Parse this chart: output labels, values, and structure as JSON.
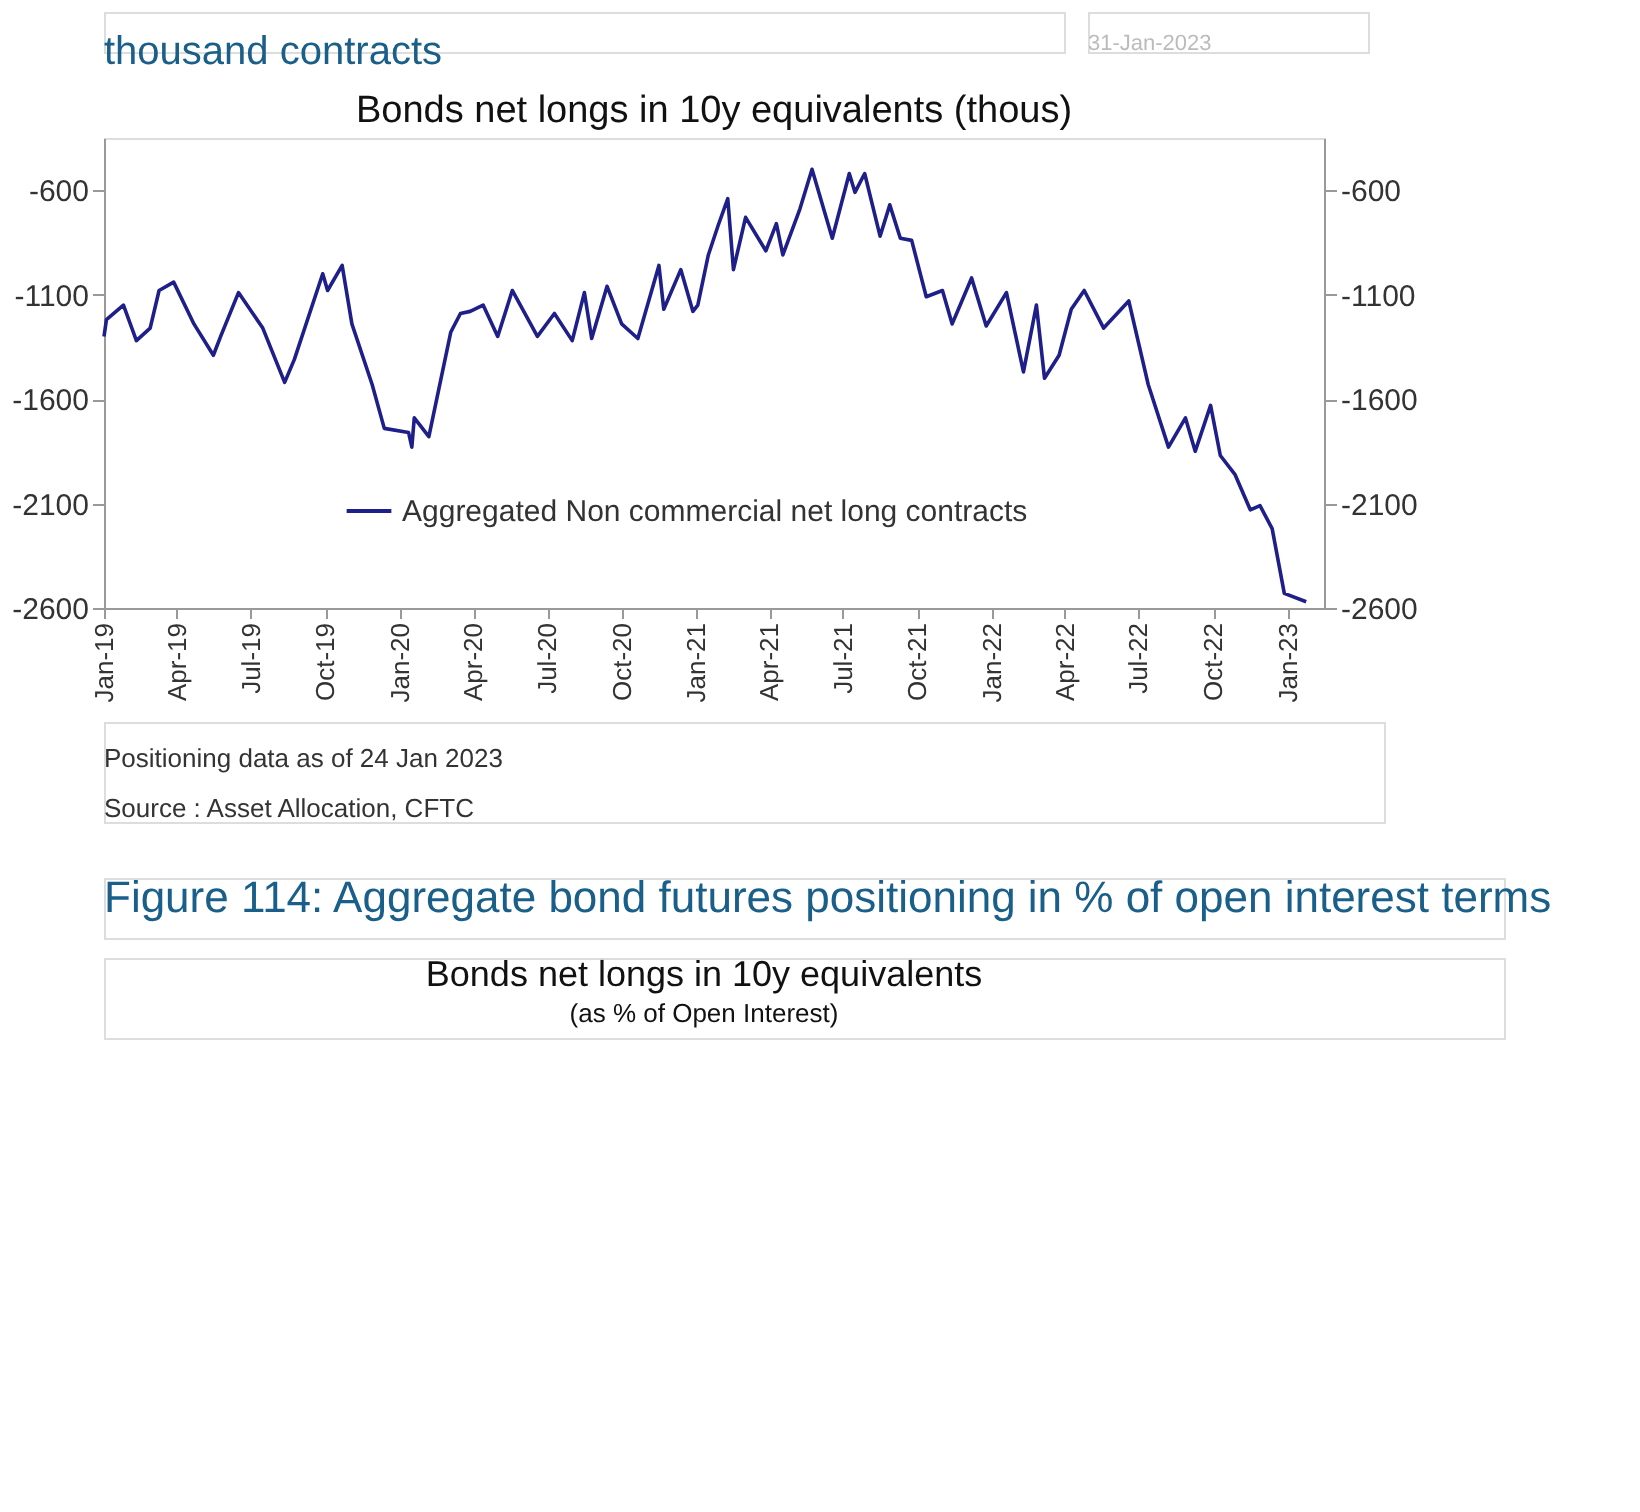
{
  "chart_data": [
    {
      "type": "line",
      "title": "Bonds net longs in 10y equivalents (thous)",
      "annotations": [
        "thousand contracts",
        "31-Jan-2023",
        "Positioning data as of 24 Jan 2023",
        "Source : Asset Allocation, CFTC"
      ],
      "x": [
        "2019-01-01",
        "2019-01-04",
        "2019-01-25",
        "2019-02-10",
        "2019-02-27",
        "2019-03-10",
        "2019-03-28",
        "2019-04-22",
        "2019-05-16",
        "2019-05-25",
        "2019-06-16",
        "2019-07-16",
        "2019-08-12",
        "2019-08-24",
        "2019-09-28",
        "2019-10-04",
        "2019-10-22",
        "2019-11-03",
        "2019-11-28",
        "2019-12-13",
        "2020-01-12",
        "2020-01-16",
        "2020-01-19",
        "2020-02-06",
        "2020-03-04",
        "2020-03-16",
        "2020-03-28",
        "2020-04-13",
        "2020-05-01",
        "2020-05-19",
        "2020-06-19",
        "2020-07-10",
        "2020-08-01",
        "2020-08-16",
        "2020-08-25",
        "2020-09-13",
        "2020-10-01",
        "2020-10-21",
        "2020-11-16",
        "2020-11-22",
        "2020-12-13",
        "2020-12-28",
        "2021-01-03",
        "2021-01-16",
        "2021-01-28",
        "2021-02-09",
        "2021-02-16",
        "2021-03-03",
        "2021-03-28",
        "2021-04-10",
        "2021-04-18",
        "2021-05-09",
        "2021-05-24",
        "2021-06-18",
        "2021-07-09",
        "2021-07-16",
        "2021-07-28",
        "2021-08-16",
        "2021-08-28",
        "2021-09-10",
        "2021-09-24",
        "2021-10-12",
        "2021-11-01",
        "2021-11-13",
        "2021-11-25",
        "2021-12-07",
        "2021-12-25",
        "2022-01-19",
        "2022-02-09",
        "2022-02-25",
        "2022-03-07",
        "2022-03-25",
        "2022-04-09",
        "2022-04-25",
        "2022-05-19",
        "2022-06-19",
        "2022-07-13",
        "2022-08-07",
        "2022-08-28",
        "2022-09-09",
        "2022-09-28",
        "2022-10-10",
        "2022-10-28",
        "2022-11-16",
        "2022-11-28",
        "2022-12-13",
        "2022-12-28",
        "2023-01-24"
      ],
      "series": [
        {
          "name": "Aggregated Non commercial net long contracts",
          "color": "#1f1f8a",
          "values": [
            -1300,
            -1220,
            -1150,
            -1320,
            -1260,
            -1080,
            -1040,
            -1240,
            -1390,
            -1300,
            -1090,
            -1260,
            -1520,
            -1410,
            -1000,
            -1080,
            -960,
            -1240,
            -1530,
            -1740,
            -1760,
            -1830,
            -1690,
            -1780,
            -1280,
            -1190,
            -1180,
            -1150,
            -1300,
            -1080,
            -1300,
            -1190,
            -1320,
            -1090,
            -1310,
            -1060,
            -1240,
            -1310,
            -960,
            -1170,
            -980,
            -1180,
            -1150,
            -910,
            -770,
            -640,
            -980,
            -730,
            -890,
            -760,
            -910,
            -690,
            -500,
            -830,
            -520,
            -610,
            -520,
            -820,
            -670,
            -830,
            -840,
            -1110,
            -1080,
            -1240,
            -1130,
            -1020,
            -1250,
            -1090,
            -1470,
            -1150,
            -1500,
            -1390,
            -1170,
            -1080,
            -1260,
            -1130,
            -1530,
            -1830,
            -1690,
            -1850,
            -1630,
            -1870,
            -1960,
            -2130,
            -2110,
            -2220,
            -2530,
            -2570
          ]
        }
      ],
      "xlim": [
        "2019-01-01",
        "2023-02-15"
      ],
      "xticks": [
        {
          "value": "2019-01-01",
          "label": "Jan-19"
        },
        {
          "value": "2019-04-01",
          "label": "Apr-19"
        },
        {
          "value": "2019-07-01",
          "label": "Jul-19"
        },
        {
          "value": "2019-10-01",
          "label": "Oct-19"
        },
        {
          "value": "2020-01-01",
          "label": "Jan-20"
        },
        {
          "value": "2020-04-01",
          "label": "Apr-20"
        },
        {
          "value": "2020-07-01",
          "label": "Jul-20"
        },
        {
          "value": "2020-10-01",
          "label": "Oct-20"
        },
        {
          "value": "2021-01-01",
          "label": "Jan-21"
        },
        {
          "value": "2021-04-01",
          "label": "Apr-21"
        },
        {
          "value": "2021-07-01",
          "label": "Jul-21"
        },
        {
          "value": "2021-10-01",
          "label": "Oct-21"
        },
        {
          "value": "2022-01-01",
          "label": "Jan-22"
        },
        {
          "value": "2022-04-01",
          "label": "Apr-22"
        },
        {
          "value": "2022-07-01",
          "label": "Jul-22"
        },
        {
          "value": "2022-10-01",
          "label": "Oct-22"
        },
        {
          "value": "2023-01-01",
          "label": "Jan-23"
        }
      ],
      "ylim": [
        -2600,
        -350
      ],
      "yticks": [
        -2600,
        -2100,
        -1600,
        -1100,
        -600
      ],
      "y2lim": [
        -2600,
        -350
      ],
      "y2ticks": [
        -2600,
        -2100,
        -1600,
        -1100,
        -600
      ],
      "grid": false,
      "legend": "bottom",
      "marker": "none",
      "line_style": "solid"
    },
    {
      "type": "other",
      "title": "Figure 114: Aggregate bond futures positioning in % of open interest terms",
      "subtitle": "Bonds net longs in 10y equivalents",
      "annotations": [
        "(as % of Open Interest)"
      ]
    }
  ]
}
